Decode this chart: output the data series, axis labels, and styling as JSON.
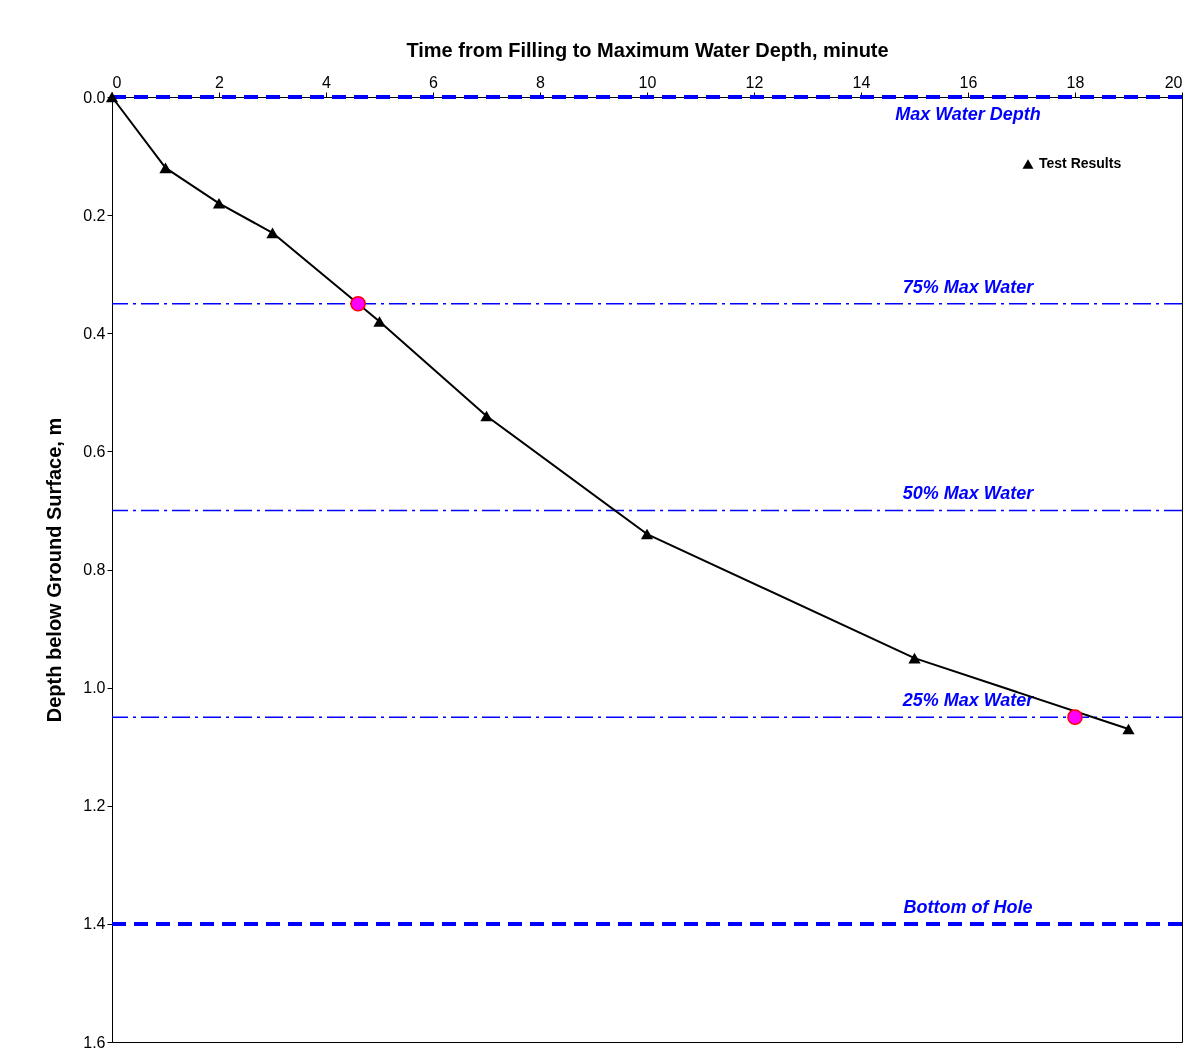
{
  "chart_data": {
    "type": "line",
    "xlabel": "Time from Filling to Maximum Water Depth, minute",
    "ylabel": "Depth below Ground Surface, m",
    "xlim": [
      0,
      20
    ],
    "xticks": [
      0,
      2,
      4,
      6,
      8,
      10,
      12,
      14,
      16,
      18,
      20
    ],
    "ylim": [
      1.6,
      0
    ],
    "yticks": [
      {
        "value": 0,
        "label": "0.0"
      },
      0.2,
      0.4,
      0.6,
      0.8,
      {
        "value": 1,
        "label": "1.0"
      },
      1.2,
      1.4,
      1.6
    ],
    "series": [
      {
        "name": "Test Results",
        "color": "#000000",
        "x": [
          0,
          1,
          2,
          3,
          5,
          7,
          10,
          15,
          19
        ],
        "values": [
          0,
          0.12,
          0.18,
          0.23,
          0.38,
          0.54,
          0.74,
          0.95,
          1.07
        ],
        "marker": "triangle"
      },
      {
        "type": "scatter",
        "color": "#ff00ff",
        "x": [
          4.6,
          18
        ],
        "values": [
          0.35,
          1.05
        ],
        "marker": "circle"
      }
    ],
    "ref_lines": [
      {
        "axis": "y",
        "value": 0,
        "label": "Max Water Depth",
        "color": "#0000ff",
        "line_style": "dashed"
      },
      {
        "axis": "y",
        "value": 0.35,
        "label": "75% Max Water",
        "color": "#0000ff",
        "line_style": "dashdot"
      },
      {
        "axis": "y",
        "value": 0.7,
        "label": "50% Max Water",
        "color": "#0000ff",
        "line_style": "dashdot"
      },
      {
        "axis": "y",
        "value": 1.05,
        "label": "25% Max Water",
        "color": "#0000ff",
        "line_style": "dashdot"
      },
      {
        "axis": "y",
        "value": 1.4,
        "label": "Bottom of Hole",
        "color": "#0000ff",
        "line_style": "dashed"
      }
    ],
    "legend": "top right",
    "grid": false
  }
}
